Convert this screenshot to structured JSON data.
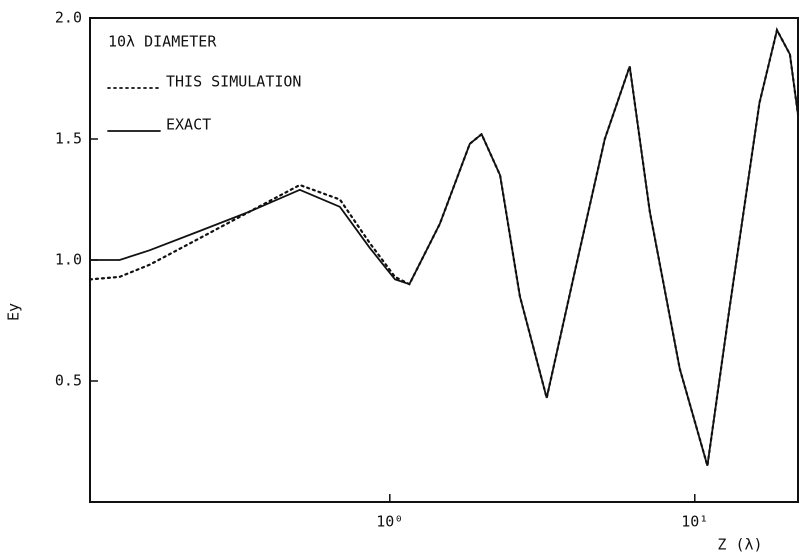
{
  "chart_data": {
    "type": "line",
    "annotation": "10λ DIAMETER",
    "x_label": "Z (λ)",
    "y_label": "Ey",
    "x": [
      0.104,
      0.13,
      0.163,
      0.238,
      0.347,
      0.507,
      0.686,
      0.86,
      1.04,
      1.16,
      1.46,
      1.83,
      2.0,
      2.3,
      2.67,
      3.27,
      4.04,
      5.07,
      6.12,
      7.12,
      8.93,
      11.0,
      13.0,
      16.3,
      18.6,
      20.5,
      21.8
    ],
    "series": [
      {
        "name": "THIS SIMULATION",
        "color": "#111111",
        "dash": "dotted",
        "values": [
          0.92,
          0.93,
          0.98,
          1.09,
          1.2,
          1.31,
          1.25,
          1.07,
          0.93,
          0.9,
          1.15,
          1.48,
          1.52,
          1.35,
          0.85,
          0.43,
          0.95,
          1.5,
          1.8,
          1.2,
          0.55,
          0.15,
          0.8,
          1.65,
          1.95,
          1.85,
          1.6
        ]
      },
      {
        "name": "EXACT",
        "color": "#111111",
        "dash": "solid",
        "values": [
          1.0,
          1.0,
          1.04,
          1.12,
          1.2,
          1.29,
          1.22,
          1.05,
          0.92,
          0.9,
          1.15,
          1.48,
          1.52,
          1.35,
          0.85,
          0.43,
          0.95,
          1.5,
          1.8,
          1.2,
          0.55,
          0.15,
          0.8,
          1.65,
          1.95,
          1.85,
          1.6
        ]
      }
    ],
    "xlog": true,
    "xlim": [
      0.104,
      21.8
    ],
    "xticks": [
      {
        "value": 1,
        "label": "10⁰"
      },
      {
        "value": 10,
        "label": "10¹"
      }
    ],
    "ylim": [
      0,
      2
    ],
    "yticks": [
      0.5,
      {
        "value": 1,
        "label": "1.0"
      },
      1.5,
      {
        "value": 2,
        "label": "2.0"
      }
    ]
  }
}
